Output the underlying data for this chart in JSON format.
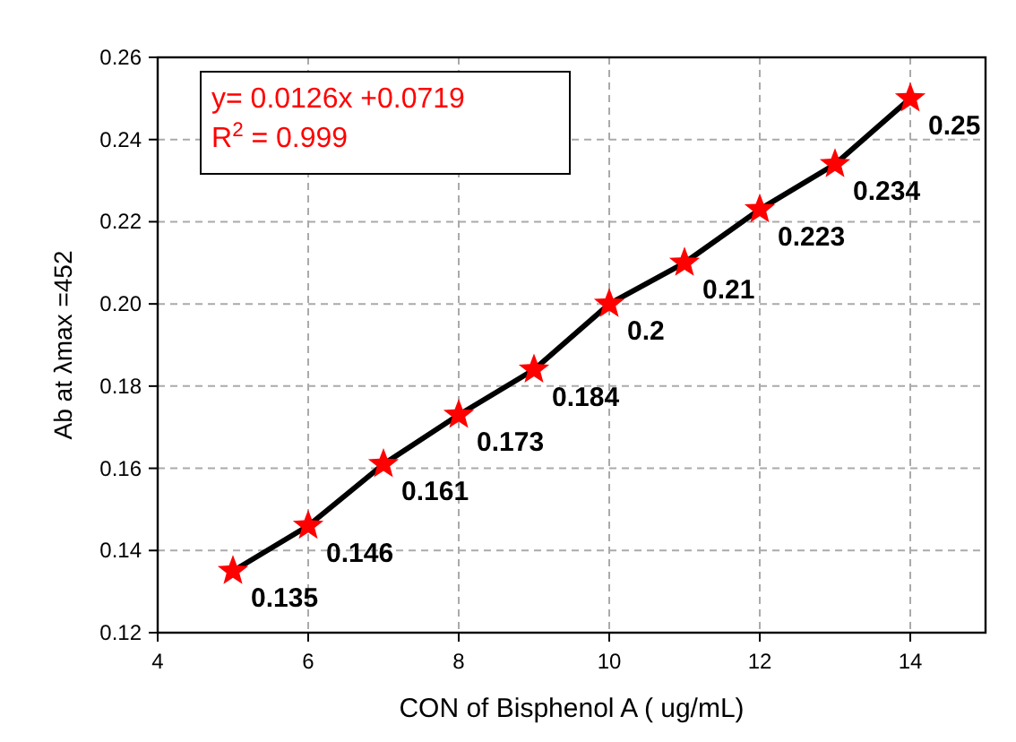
{
  "chart_data": {
    "type": "line",
    "xlabel": "CON of Bisphenol A ( ug/mL)",
    "ylabel": "Ab at λmax =452",
    "x": [
      5,
      6,
      7,
      8,
      9,
      10,
      11,
      12,
      13,
      14
    ],
    "series": [
      {
        "color": "#000000",
        "colors": [
          "#ff0000",
          "#ff0000",
          "#ff0000",
          "#ff0000",
          "#ff0000",
          "#ff0000",
          "#ff0000",
          "#ff0000",
          "#ff0000",
          "#ff0000"
        ],
        "values": [
          0.135,
          0.146,
          0.161,
          0.173,
          0.184,
          0.2,
          0.21,
          0.223,
          0.234,
          0.25
        ]
      }
    ],
    "xlim": [
      4,
      15
    ],
    "xticks": [
      4,
      6,
      8,
      10,
      12,
      14
    ],
    "ylim": [
      0.12,
      0.26
    ],
    "yticks": [
      {
        "value": 0.12,
        "label": "0.12"
      },
      {
        "value": 0.14,
        "label": "0.14"
      },
      {
        "value": 0.16,
        "label": "0.16"
      },
      {
        "value": 0.18,
        "label": "0.18"
      },
      {
        "value": 0.2,
        "label": "0.20"
      },
      {
        "value": 0.22,
        "label": "0.22"
      },
      {
        "value": 0.24,
        "label": "0.24"
      },
      {
        "value": 0.26,
        "label": "0.26"
      }
    ],
    "grid": true,
    "marker": "star",
    "line_style": "solid",
    "data_labels": true,
    "annotations": [
      "y= 0.0126x +0.0719",
      "R$^{2}$ = 0.999"
    ]
  }
}
